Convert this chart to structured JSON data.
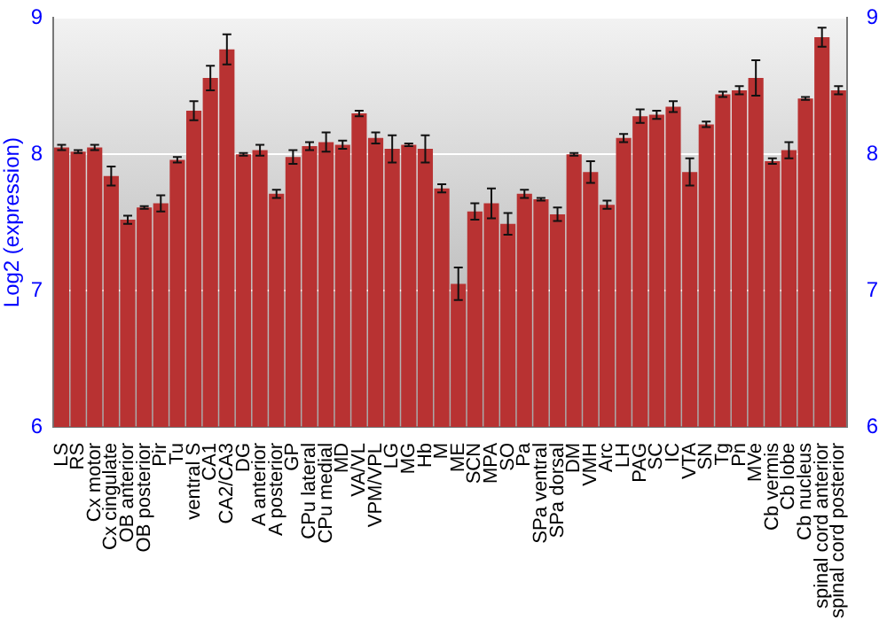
{
  "chart_data": {
    "type": "bar",
    "ylabel": "Log2 (expression)",
    "categories": [
      "LS",
      "RS",
      "Cx motor",
      "Cx cingulate",
      "OB anterior",
      "OB posterior",
      "Pir",
      "Tu",
      "ventral S",
      "CA1",
      "CA2/CA3",
      "DG",
      "A anterior",
      "A posterior",
      "GP",
      "CPu lateral",
      "CPu medial",
      "MD",
      "VA/VL",
      "VPM/VPL",
      "LG",
      "MG",
      "Hb",
      "M",
      "ME",
      "SCN",
      "MPA",
      "SO",
      "Pa",
      "SPa ventral",
      "SPa dorsal",
      "DM",
      "VMH",
      "Arc",
      "LH",
      "PAG",
      "SC",
      "IC",
      "VTA",
      "SN",
      "Tg",
      "Pn",
      "MVe",
      "Cb vermis",
      "Cb lobe",
      "Cb nucleus",
      "spinal cord anterior",
      "spinal cord posterior"
    ],
    "values": [
      8.05,
      8.02,
      8.05,
      7.84,
      7.52,
      7.61,
      7.64,
      7.96,
      8.32,
      8.56,
      8.77,
      8.0,
      8.03,
      7.71,
      7.98,
      8.06,
      8.09,
      8.07,
      8.3,
      8.12,
      8.04,
      8.07,
      8.04,
      7.75,
      7.05,
      7.58,
      7.64,
      7.49,
      7.71,
      7.67,
      7.56,
      8.0,
      7.87,
      7.63,
      8.12,
      8.28,
      8.29,
      8.35,
      7.87,
      8.22,
      8.44,
      8.47,
      8.56,
      7.95,
      8.03,
      8.41,
      8.86,
      8.47
    ],
    "errors": [
      0.02,
      0.01,
      0.02,
      0.07,
      0.03,
      0.01,
      0.06,
      0.02,
      0.07,
      0.09,
      0.11,
      0.01,
      0.04,
      0.03,
      0.05,
      0.03,
      0.07,
      0.03,
      0.02,
      0.04,
      0.1,
      0.01,
      0.1,
      0.03,
      0.12,
      0.06,
      0.11,
      0.08,
      0.03,
      0.01,
      0.05,
      0.01,
      0.08,
      0.03,
      0.03,
      0.05,
      0.03,
      0.04,
      0.1,
      0.02,
      0.02,
      0.03,
      0.13,
      0.02,
      0.06,
      0.01,
      0.07,
      0.03
    ],
    "color": "#b83232",
    "ylim": [
      6,
      9
    ],
    "yticks": [
      6,
      7,
      8,
      9
    ],
    "y2lim": [
      6,
      9
    ],
    "y2ticks": [
      6,
      7,
      8,
      9
    ],
    "grid": "y",
    "legend": false
  }
}
